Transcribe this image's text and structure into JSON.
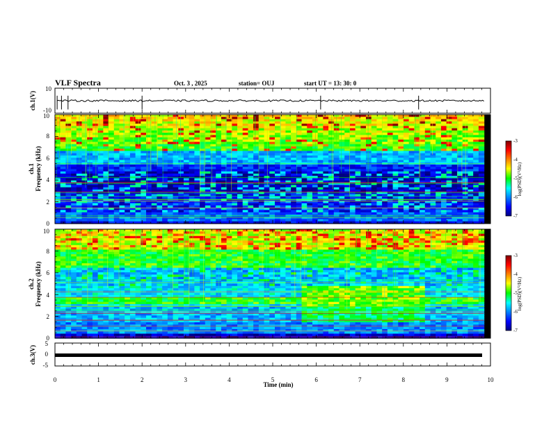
{
  "header": {
    "title": "VLF Spectra",
    "date": "Oct. 3 , 2025",
    "station": "station= OUJ",
    "start": "start UT = 13: 30: 0"
  },
  "chart_data": [
    {
      "type": "line",
      "name": "ch1-voltage",
      "ylabel": "ch.1(V)",
      "ylim": [
        -10,
        10
      ],
      "yticks": [
        "10",
        "-10"
      ],
      "approx_level": 0,
      "xlim": [
        0,
        9.85
      ]
    },
    {
      "type": "heatmap",
      "name": "ch1-spectrogram",
      "ylabel_top": "ch.1",
      "ylabel": "Frequency (kHz)",
      "ylim": [
        0,
        10
      ],
      "yticks": [
        "0",
        "2",
        "4",
        "6",
        "8",
        "10"
      ],
      "xlim": [
        0,
        9.85
      ],
      "colorbar": {
        "label": "log(PSD)(V²/Hz)",
        "range": [
          -7,
          -3
        ],
        "ticks": [
          "-3",
          "-4",
          "-5",
          "-6",
          "-7"
        ]
      }
    },
    {
      "type": "heatmap",
      "name": "ch2-spectrogram",
      "ylabel_top": "ch.2",
      "ylabel": "Frequency (kHz)",
      "ylim": [
        0,
        10
      ],
      "yticks": [
        "0",
        "2",
        "4",
        "6",
        "8",
        "10"
      ],
      "xlim": [
        0,
        9.85
      ],
      "regime_change_min": [
        5.65,
        8.5
      ],
      "colorbar": {
        "label": "log(PSD)(V²/Hz)",
        "range": [
          -7,
          -3
        ],
        "ticks": [
          "-3",
          "-4",
          "-5",
          "-6",
          "-7"
        ]
      }
    },
    {
      "type": "line",
      "name": "ch3-voltage",
      "ylabel": "ch.3(V)",
      "ylim": [
        -5,
        5
      ],
      "yticks": [
        "5",
        "0",
        "-5"
      ],
      "approx_level": -1.2,
      "xlim": [
        0,
        9.85
      ]
    }
  ],
  "xaxis": {
    "label": "Time (min)",
    "range": [
      0,
      10
    ],
    "ticks": [
      "0",
      "1",
      "2",
      "3",
      "4",
      "5",
      "6",
      "7",
      "8",
      "9",
      "10"
    ]
  },
  "colors": {
    "colormap": [
      "#00007f",
      "#0000ff",
      "#00ffff",
      "#00ff00",
      "#ffff00",
      "#ff0000",
      "#7f0000"
    ]
  }
}
